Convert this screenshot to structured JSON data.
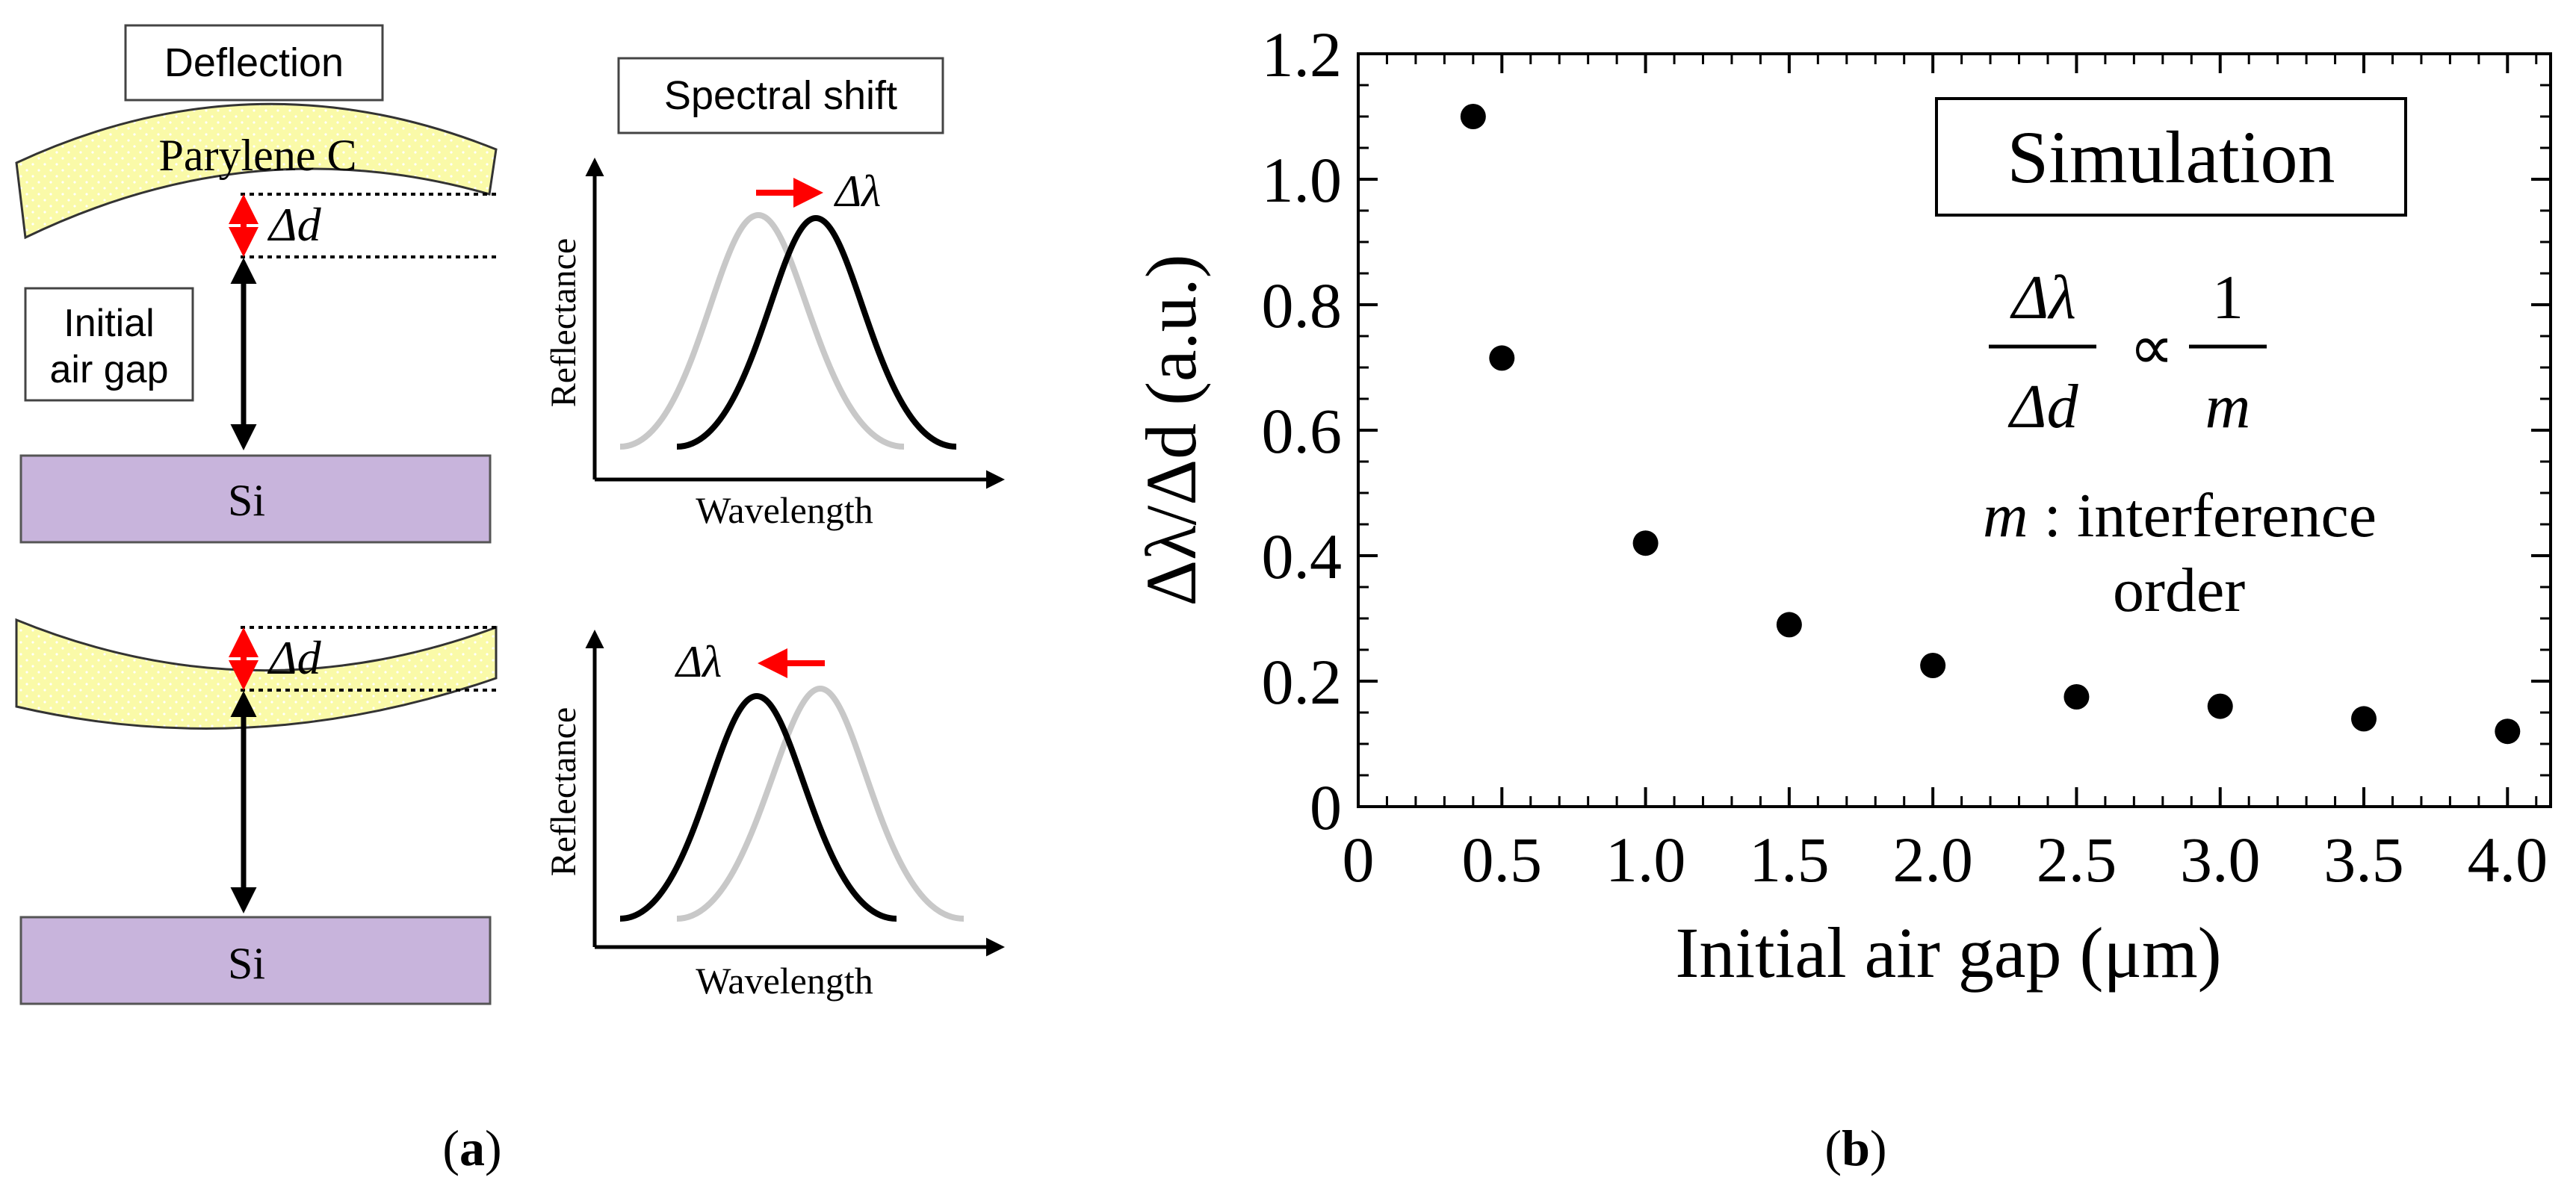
{
  "panel_a": {
    "caption": "(a)",
    "caption_letter": "a",
    "deflection_label": "Deflection",
    "spectral_shift_label": "Spectral shift",
    "parylene_label": "Parylene C",
    "delta_d_label": "Δd",
    "initial_air_gap_line1": "Initial",
    "initial_air_gap_line2": "air gap",
    "si_label": "Si",
    "reflectance_label": "Reflectance",
    "wavelength_label": "Wavelength",
    "delta_lambda_label": "Δλ",
    "colors": {
      "membrane": "#fafaa8",
      "substrate": "#c8b4dc",
      "arrow_red": "#ff0000",
      "grey_peak": "#c8c8c8"
    }
  },
  "panel_b": {
    "caption": "(b)",
    "caption_letter": "b",
    "simulation_label": "Simulation",
    "formula_num": "Δλ",
    "formula_den": "Δd",
    "formula_prop": "∝",
    "formula_rhs_num": "1",
    "formula_rhs_den": "m",
    "m_symbol": "m",
    "m_desc_line1": " : interference",
    "m_desc_line2": "order",
    "chart_data": {
      "type": "scatter",
      "title": "",
      "xlabel": "Initial air gap (μm)",
      "ylabel": "Δλ/Δd (a.u.)",
      "xlim": [
        0,
        4.15
      ],
      "ylim": [
        0,
        1.2
      ],
      "xticks": [
        "0",
        "0.5",
        "1.0",
        "1.5",
        "2.0",
        "2.5",
        "3.0",
        "3.5",
        "4.0"
      ],
      "yticks": [
        "0",
        "0.2",
        "0.4",
        "0.6",
        "0.8",
        "1.0",
        "1.2"
      ],
      "x": [
        0.4,
        0.5,
        1.0,
        1.5,
        2.0,
        2.5,
        3.0,
        3.5,
        4.0
      ],
      "y": [
        1.1,
        0.715,
        0.42,
        0.29,
        0.225,
        0.175,
        0.16,
        0.14,
        0.12
      ]
    }
  }
}
